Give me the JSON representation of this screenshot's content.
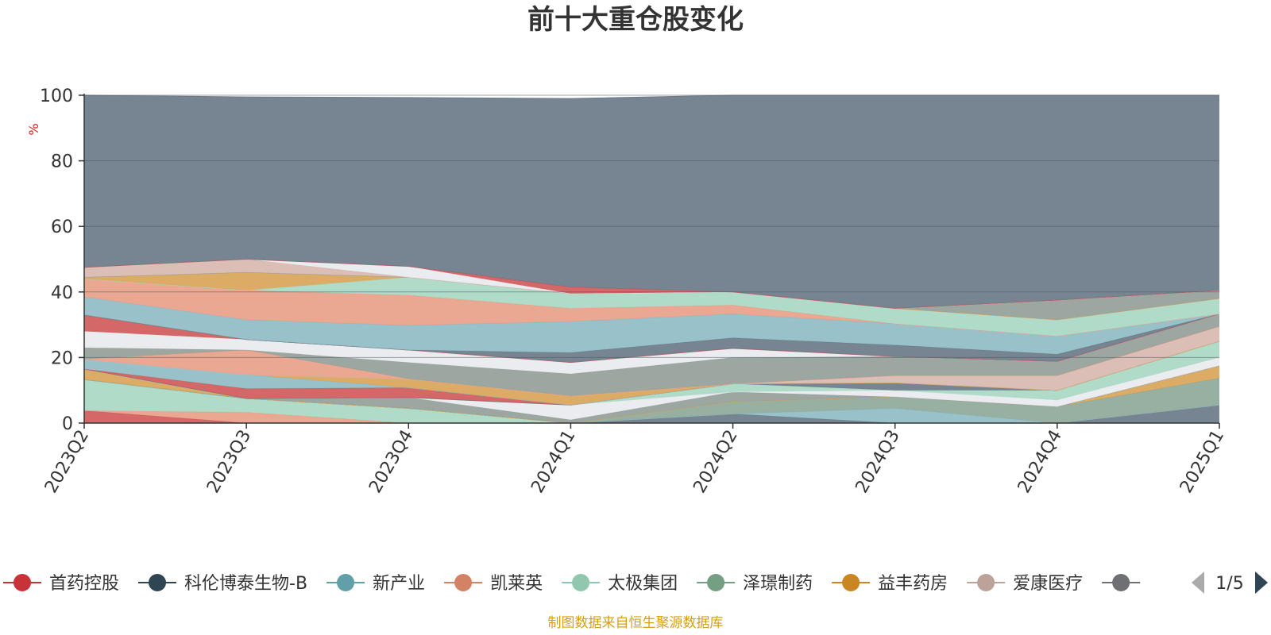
{
  "chart_data": {
    "type": "area",
    "title": "前十大重仓股变化",
    "ylabel": "%",
    "ylim": [
      0,
      100
    ],
    "yticks": [
      "0",
      "20",
      "40",
      "60",
      "80",
      "100"
    ],
    "categories": [
      "2023Q2",
      "2023Q3",
      "2023Q4",
      "2024Q1",
      "2024Q2",
      "2024Q3",
      "2024Q4",
      "2025Q1"
    ],
    "grid": true,
    "legend_position": "bottom",
    "legend_page": "1/5",
    "source_note": "制图数据来自恒生聚源数据库",
    "layers": [
      {
        "color": "#d05a5a",
        "values": [
          3.8,
          0,
          0,
          0,
          0,
          0,
          0,
          0
        ]
      },
      {
        "color": "#e8a088",
        "values": [
          3.8,
          3.3,
          0,
          0,
          0,
          0,
          0,
          0
        ]
      },
      {
        "color": "#a9d8c4",
        "values": [
          13.3,
          7.5,
          4.5,
          0,
          0,
          0,
          0,
          0
        ]
      },
      {
        "color": "#6b7a88",
        "values": [
          13.3,
          7.5,
          4.5,
          0,
          2.8,
          0,
          0,
          5.5
        ]
      },
      {
        "color": "#8fbcc4",
        "values": [
          13.3,
          7.5,
          4.5,
          0,
          2.8,
          4.5,
          0,
          5.5
        ]
      },
      {
        "color": "#8fa99a",
        "values": [
          13.3,
          7.5,
          4.5,
          0,
          6.5,
          8,
          5,
          13.7
        ]
      },
      {
        "color": "#d9a55a",
        "values": [
          16.5,
          7.5,
          4.5,
          0,
          6.5,
          8,
          5,
          17.5
        ]
      },
      {
        "color": "#95a09a",
        "values": [
          16.5,
          7.5,
          7.8,
          1,
          9.5,
          8,
          5,
          17.5
        ]
      },
      {
        "color": "#e8eaef",
        "values": [
          16.5,
          7.5,
          7.8,
          5.5,
          9.5,
          10,
          7,
          20
        ]
      },
      {
        "color": "#a9d8c4",
        "values": [
          16.5,
          7.5,
          7.8,
          5.5,
          12,
          10,
          10,
          25
        ]
      },
      {
        "color": "#6b7a88",
        "values": [
          16.5,
          7.5,
          7.8,
          5.5,
          12,
          12.3,
          10,
          25
        ]
      },
      {
        "color": "#d05a5a",
        "values": [
          16.5,
          10.5,
          10.8,
          5.5,
          12,
          12.3,
          10,
          25
        ]
      },
      {
        "color": "#8fbcc4",
        "values": [
          19.5,
          14.8,
          10.8,
          5.5,
          12,
          12.3,
          10,
          25
        ]
      },
      {
        "color": "#d9a55a",
        "values": [
          19.5,
          14.8,
          13.5,
          8.3,
          12,
          12.3,
          10,
          25
        ]
      },
      {
        "color": "#d8b8b0",
        "values": [
          19.5,
          14.8,
          13.5,
          8.3,
          12,
          14.5,
          14.5,
          29.5
        ]
      },
      {
        "color": "#e8a088",
        "values": [
          19.5,
          22.3,
          13.5,
          8.3,
          12,
          14.5,
          14.5,
          29.5
        ]
      },
      {
        "color": "#95a09a",
        "values": [
          23,
          22.3,
          18.5,
          15,
          20,
          20.3,
          18.8,
          33.3
        ]
      },
      {
        "color": "#e8eaef",
        "values": [
          28,
          25.5,
          22.3,
          18.5,
          22.8,
          20.3,
          18.8,
          33.3
        ]
      },
      {
        "color": "#d05a5a",
        "values": [
          33,
          25.5,
          22.3,
          18.5,
          22.8,
          20.3,
          18.8,
          33.3
        ]
      },
      {
        "color": "#6b7a88",
        "values": [
          33,
          25.5,
          22.3,
          21.5,
          26,
          23.8,
          21,
          33.3
        ]
      },
      {
        "color": "#8fbcc4",
        "values": [
          38.5,
          31.5,
          29.8,
          31,
          33.3,
          30.3,
          26.5,
          33.3
        ]
      },
      {
        "color": "#e8a088",
        "values": [
          44,
          40.5,
          39,
          35,
          36,
          30.3,
          26.5,
          33.3
        ]
      },
      {
        "color": "#a9d8c4",
        "values": [
          44,
          40.5,
          44.5,
          39.5,
          40,
          35,
          31.5,
          38
        ]
      },
      {
        "color": "#d9a55a",
        "values": [
          44.5,
          46,
          44.5,
          39.5,
          40,
          35,
          31.5,
          38
        ]
      },
      {
        "color": "#95a09a",
        "values": [
          44.5,
          46,
          44.5,
          39.5,
          40,
          35,
          37.5,
          40.5
        ]
      },
      {
        "color": "#d8b8b0",
        "values": [
          47.5,
          50,
          44.5,
          39.5,
          40,
          35,
          37.5,
          40.5
        ]
      },
      {
        "color": "#e8eaef",
        "values": [
          47.5,
          50,
          47.8,
          39.5,
          40,
          35,
          37.5,
          40.5
        ]
      },
      {
        "color": "#d05a5a",
        "values": [
          47.5,
          50,
          47.8,
          41.5,
          40,
          35,
          37.5,
          40.5
        ]
      },
      {
        "color": "#6b7a88",
        "values": [
          100,
          99.5,
          99.3,
          99,
          100,
          100,
          100,
          100
        ]
      }
    ]
  },
  "legend": {
    "items": [
      {
        "label": "首药控股",
        "color": "#c8333a",
        "icon": "circle-marker-icon"
      },
      {
        "label": "科伦博泰生物-B",
        "color": "#2f4554",
        "icon": "circle-marker-icon"
      },
      {
        "label": "新产业",
        "color": "#61a0a8",
        "icon": "circle-marker-icon"
      },
      {
        "label": "凯莱英",
        "color": "#d48265",
        "icon": "circle-marker-icon"
      },
      {
        "label": "太极集团",
        "color": "#91c7ae",
        "icon": "circle-marker-icon"
      },
      {
        "label": "泽璟制药",
        "color": "#749f83",
        "icon": "circle-marker-icon"
      },
      {
        "label": "益丰药房",
        "color": "#ca8622",
        "icon": "circle-marker-icon"
      },
      {
        "label": "爱康医疗",
        "color": "#bda29a",
        "icon": "circle-marker-icon"
      },
      {
        "label": "",
        "color": "#6e7074",
        "icon": "circle-marker-icon"
      }
    ],
    "page_indicator": "1/5",
    "prev_icon": "triangle-left-icon",
    "next_icon": "triangle-right-icon",
    "prev_color": "#aaaaaa",
    "next_color": "#2f4554"
  },
  "colors": {
    "title": "#333333",
    "axis_text": "#333333",
    "ylabel": "#d42020",
    "source_note": "#d4a017",
    "gridline": "#4f5b66",
    "axis_line": "#333333"
  }
}
